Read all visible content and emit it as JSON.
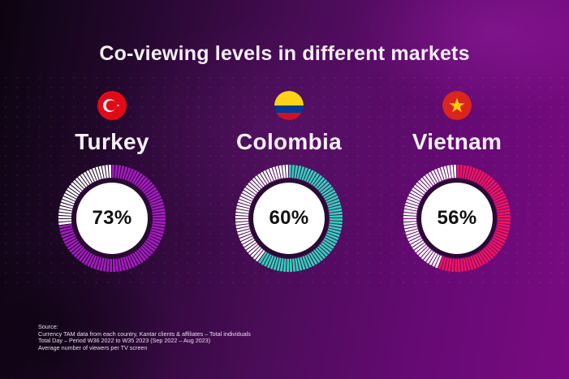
{
  "title": "Co-viewing levels in different markets",
  "markets": [
    {
      "name": "Turkey",
      "value_label": "73%",
      "flag_icon": "turkey-flag-icon",
      "color": "#a51cc0"
    },
    {
      "name": "Colombia",
      "value_label": "60%",
      "flag_icon": "colombia-flag-icon",
      "color": "#2fd3b9"
    },
    {
      "name": "Vietnam",
      "value_label": "56%",
      "flag_icon": "vietnam-flag-icon",
      "color": "#f2145c"
    }
  ],
  "source": {
    "heading": "Source:",
    "lines": [
      "Currency TAM data from each country, Kantar clients & affiliates – Total individuals",
      "Total Day – Period W36 2022 to W35 2023 (Sep 2022 – Aug 2023)",
      "Average number of viewers per TV screen"
    ]
  },
  "colors": {
    "remainder": "#ffffff",
    "ring_gap": "#2a0a33"
  },
  "chart_data": {
    "type": "pie",
    "subtype": "donut",
    "title": "Co-viewing levels in different markets",
    "categories": [
      "Turkey",
      "Colombia",
      "Vietnam"
    ],
    "values": [
      73,
      60,
      56
    ],
    "unit": "%",
    "series": [
      {
        "name": "Turkey",
        "values": [
          73,
          27
        ],
        "labels": [
          "Co-viewing",
          "Remainder"
        ],
        "color": "#a51cc0"
      },
      {
        "name": "Colombia",
        "values": [
          60,
          40
        ],
        "labels": [
          "Co-viewing",
          "Remainder"
        ],
        "color": "#2fd3b9"
      },
      {
        "name": "Vietnam",
        "values": [
          56,
          44
        ],
        "labels": [
          "Co-viewing",
          "Remainder"
        ],
        "color": "#f2145c"
      }
    ],
    "xlabel": "",
    "ylabel": "",
    "legend": "none",
    "grid": false,
    "notes": "Source: Currency TAM data from each country, Kantar clients & affiliates – Total individuals; Total Day – Period W36 2022 to W35 2023 (Sep 2022 – Aug 2023); Average number of viewers per TV screen"
  }
}
